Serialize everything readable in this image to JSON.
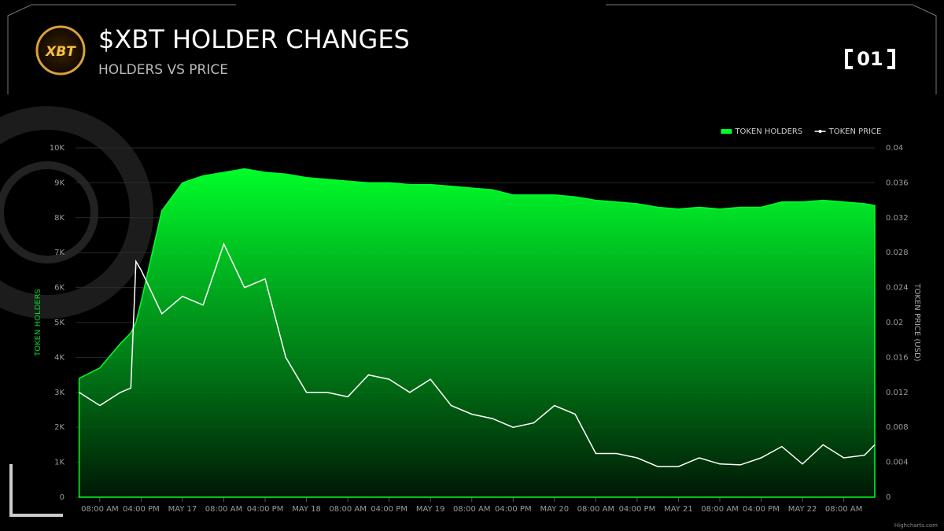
{
  "header": {
    "logo": "XBT",
    "badge": "01"
  },
  "chart_data": {
    "type": "combo",
    "title": "$XBT HOLDER CHANGES",
    "subtitle": "HOLDERS VS PRICE",
    "y_label": "TOKEN HOLDERS",
    "y2_label": "TOKEN PRICE (USD)",
    "credit": "Highcharts.com",
    "x": [
      4,
      8,
      12,
      14,
      15,
      16,
      20,
      24,
      28,
      32,
      36,
      40,
      44,
      48,
      52,
      56,
      60,
      64,
      68,
      72,
      76,
      80,
      84,
      88,
      92,
      96,
      100,
      104,
      108,
      112,
      116,
      120,
      124,
      128,
      132,
      136,
      140,
      144,
      148,
      152,
      156,
      158
    ],
    "series": [
      {
        "name": "TOKEN HOLDERS",
        "type": "area",
        "color": "#00ff2a",
        "values": [
          3400,
          3700,
          4400,
          4700,
          5000,
          5600,
          8200,
          9000,
          9200,
          9300,
          9400,
          9300,
          9250,
          9150,
          9100,
          9050,
          9000,
          9000,
          8950,
          8950,
          8900,
          8850,
          8800,
          8650,
          8650,
          8650,
          8600,
          8500,
          8450,
          8400,
          8300,
          8250,
          8300,
          8250,
          8300,
          8300,
          8450,
          8450,
          8500,
          8450,
          8400,
          8350
        ]
      },
      {
        "name": "TOKEN PRICE",
        "type": "line",
        "axis": "y2",
        "color": "#ffffff",
        "values": [
          0.012,
          0.0105,
          0.012,
          0.0125,
          0.027,
          0.026,
          0.021,
          0.023,
          0.022,
          0.029,
          0.024,
          0.025,
          0.016,
          0.012,
          0.012,
          0.0115,
          0.014,
          0.0135,
          0.012,
          0.0135,
          0.0105,
          0.0095,
          0.009,
          0.008,
          0.0085,
          0.0105,
          0.0095,
          0.005,
          0.005,
          0.0045,
          0.0035,
          0.0035,
          0.0045,
          0.0038,
          0.0037,
          0.0045,
          0.0058,
          0.0038,
          0.006,
          0.0045,
          0.0048,
          0.006
        ]
      }
    ],
    "xlim": [
      3.3,
      158
    ],
    "xticks": [
      {
        "value": 8,
        "label": "08:00 AM"
      },
      {
        "value": 16,
        "label": "04:00 PM"
      },
      {
        "value": 24,
        "label": "MAY 17"
      },
      {
        "value": 32,
        "label": "08:00 AM"
      },
      {
        "value": 40,
        "label": "04:00 PM"
      },
      {
        "value": 48,
        "label": "MAY 18"
      },
      {
        "value": 56,
        "label": "08:00 AM"
      },
      {
        "value": 64,
        "label": "04:00 PM"
      },
      {
        "value": 72,
        "label": "MAY 19"
      },
      {
        "value": 80,
        "label": "08:00 AM"
      },
      {
        "value": 88,
        "label": "04:00 PM"
      },
      {
        "value": 96,
        "label": "MAY 20"
      },
      {
        "value": 104,
        "label": "08:00 AM"
      },
      {
        "value": 112,
        "label": "04:00 PM"
      },
      {
        "value": 120,
        "label": "MAY 21"
      },
      {
        "value": 128,
        "label": "08:00 AM"
      },
      {
        "value": 136,
        "label": "04:00 PM"
      },
      {
        "value": 144,
        "label": "MAY 22"
      },
      {
        "value": 152,
        "label": "08:00 AM"
      }
    ],
    "ylim": [
      0,
      10000
    ],
    "yticks": [
      0,
      {
        "value": 1000,
        "label": "1K"
      },
      {
        "value": 2000,
        "label": "2K"
      },
      {
        "value": 3000,
        "label": "3K"
      },
      {
        "value": 4000,
        "label": "4K"
      },
      {
        "value": 5000,
        "label": "5K"
      },
      {
        "value": 6000,
        "label": "6K"
      },
      {
        "value": 7000,
        "label": "7K"
      },
      {
        "value": 8000,
        "label": "8K"
      },
      {
        "value": 9000,
        "label": "9K"
      },
      {
        "value": 10000,
        "label": "10K"
      }
    ],
    "y2lim": [
      0,
      0.04
    ],
    "y2ticks": [
      0,
      0.004,
      0.008,
      0.012,
      0.016,
      0.02,
      0.024,
      0.028,
      0.032,
      0.036,
      0.04
    ],
    "grid": true,
    "legend": "top-right"
  }
}
